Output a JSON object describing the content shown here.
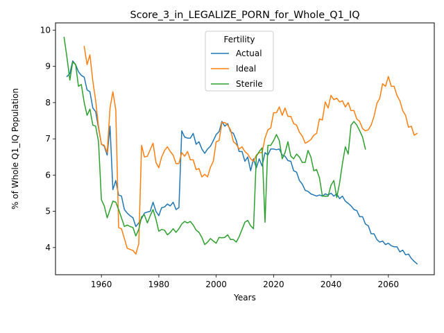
{
  "chart_data": {
    "type": "line",
    "title": "Score_3_in_LEGALIZE_PORN_for_Whole_Q1_IQ",
    "xlabel": "Years",
    "ylabel": "% of Whole Q1_IQ Population",
    "xlim": [
      1944,
      2076
    ],
    "ylim": [
      3.25,
      10.2
    ],
    "xticks": [
      1960,
      1980,
      2000,
      2020,
      2040,
      2060
    ],
    "yticks": [
      4,
      5,
      6,
      7,
      8,
      9,
      10
    ],
    "grid": false,
    "legend": {
      "title": "Fertility",
      "position": "upper center"
    },
    "series": [
      {
        "name": "Actual",
        "color": "#1f77b4",
        "x": [
          1948,
          1949,
          1950,
          1951,
          1952,
          1953,
          1954,
          1955,
          1956,
          1957,
          1958,
          1959,
          1960,
          1961,
          1962,
          1963,
          1964,
          1965,
          1966,
          1967,
          1968,
          1969,
          1970,
          1971,
          1972,
          1973,
          1974,
          1975,
          1976,
          1977,
          1978,
          1979,
          1980,
          1981,
          1982,
          1983,
          1984,
          1985,
          1986,
          1987,
          1988,
          1989,
          1990,
          1991,
          1992,
          1993,
          1994,
          1995,
          1996,
          1997,
          1998,
          1999,
          2000,
          2001,
          2002,
          2003,
          2004,
          2005,
          2006,
          2007,
          2008,
          2009,
          2010,
          2011,
          2012,
          2013,
          2014,
          2015,
          2016,
          2017,
          2018,
          2019,
          2020,
          2021,
          2022,
          2023,
          2024,
          2025,
          2026,
          2027,
          2028,
          2029,
          2030,
          2031,
          2032,
          2033,
          2034,
          2035,
          2036,
          2037,
          2038,
          2039,
          2040,
          2041,
          2042,
          2043,
          2044,
          2045,
          2046,
          2047,
          2048,
          2049,
          2050,
          2051,
          2052,
          2053,
          2054,
          2055,
          2056,
          2057,
          2058,
          2059,
          2060,
          2061,
          2062,
          2063,
          2064,
          2065,
          2066,
          2067,
          2068,
          2069,
          2070
        ],
        "y": [
          8.72,
          8.8,
          9.15,
          9.05,
          8.85,
          8.75,
          8.7,
          8.35,
          8.3,
          7.85,
          7.75,
          7.3,
          6.85,
          6.8,
          6.55,
          7.35,
          5.6,
          5.85,
          5.45,
          5.42,
          5.05,
          4.95,
          4.88,
          4.82,
          4.58,
          4.68,
          4.8,
          4.95,
          4.98,
          5.0,
          5.25,
          5.0,
          4.88,
          5.1,
          5.12,
          5.2,
          5.15,
          5.25,
          5.05,
          5.1,
          7.22,
          7.05,
          7.02,
          7.02,
          7.15,
          6.85,
          6.92,
          6.72,
          6.6,
          6.72,
          6.8,
          6.95,
          7.12,
          7.2,
          7.48,
          7.35,
          7.42,
          7.2,
          7.15,
          6.95,
          6.65,
          6.65,
          6.38,
          6.5,
          6.12,
          6.45,
          6.2,
          6.45,
          6.25,
          6.62,
          6.55,
          6.72,
          6.72,
          6.7,
          6.72,
          6.55,
          6.52,
          6.4,
          6.38,
          6.12,
          6.08,
          5.85,
          5.75,
          5.58,
          5.55,
          5.48,
          5.45,
          5.42,
          5.45,
          5.42,
          5.48,
          5.45,
          5.5,
          5.42,
          5.48,
          5.35,
          5.42,
          5.28,
          5.22,
          5.15,
          5.05,
          5.02,
          4.85,
          4.85,
          4.65,
          4.6,
          4.38,
          4.38,
          4.22,
          4.15,
          4.18,
          4.08,
          4.12,
          4.05,
          4.02,
          4.02,
          3.88,
          3.93,
          3.8,
          3.82,
          3.7,
          3.62,
          3.55
        ]
      },
      {
        "name": "Ideal",
        "color": "#ff7f0e",
        "x": [
          1954,
          1955,
          1956,
          1957,
          1958,
          1959,
          1960,
          1961,
          1962,
          1963,
          1964,
          1965,
          1966,
          1967,
          1968,
          1969,
          1970,
          1971,
          1972,
          1973,
          1974,
          1975,
          1976,
          1977,
          1978,
          1979,
          1980,
          1981,
          1982,
          1983,
          1984,
          1985,
          1986,
          1987,
          1988,
          1989,
          1990,
          1991,
          1992,
          1993,
          1994,
          1995,
          1996,
          1997,
          1998,
          1999,
          2000,
          2001,
          2002,
          2003,
          2004,
          2005,
          2006,
          2007,
          2008,
          2009,
          2010,
          2011,
          2012,
          2013,
          2014,
          2015,
          2016,
          2017,
          2018,
          2019,
          2020,
          2021,
          2022,
          2023,
          2024,
          2025,
          2026,
          2027,
          2028,
          2029,
          2030,
          2031,
          2032,
          2033,
          2034,
          2035,
          2036,
          2037,
          2038,
          2039,
          2040,
          2041,
          2042,
          2043,
          2044,
          2045,
          2046,
          2047,
          2048,
          2049,
          2050,
          2051,
          2052,
          2053,
          2054,
          2055,
          2056,
          2057,
          2058,
          2059,
          2060,
          2061,
          2062,
          2063,
          2064,
          2065,
          2066,
          2067,
          2068,
          2069,
          2070
        ],
        "y": [
          9.55,
          9.05,
          9.32,
          8.6,
          8.05,
          7.35,
          6.85,
          6.82,
          6.62,
          7.85,
          8.3,
          7.8,
          4.55,
          4.52,
          4.25,
          3.98,
          3.95,
          3.92,
          3.82,
          4.1,
          6.82,
          6.5,
          6.52,
          6.7,
          6.88,
          6.35,
          6.2,
          6.5,
          6.68,
          6.78,
          6.65,
          6.55,
          6.32,
          6.32,
          6.62,
          6.52,
          6.65,
          6.42,
          6.42,
          6.15,
          6.18,
          5.95,
          6.02,
          5.95,
          6.22,
          6.38,
          6.92,
          6.95,
          7.45,
          7.45,
          7.38,
          7.25,
          6.92,
          6.85,
          6.72,
          6.78,
          6.65,
          6.58,
          6.45,
          6.38,
          6.55,
          6.62,
          6.62,
          7.02,
          7.25,
          7.3,
          7.72,
          7.72,
          7.88,
          7.65,
          7.85,
          7.62,
          7.62,
          7.42,
          7.38,
          7.18,
          7.08,
          6.88,
          6.92,
          6.98,
          7.1,
          7.15,
          7.55,
          7.52,
          8.02,
          7.85,
          8.2,
          8.08,
          8.12,
          8.02,
          8.05,
          7.88,
          8.0,
          7.78,
          7.78,
          7.55,
          7.48,
          7.28,
          7.22,
          7.25,
          7.38,
          7.62,
          7.98,
          8.12,
          8.52,
          8.45,
          8.72,
          8.45,
          8.45,
          8.2,
          8.05,
          7.78,
          7.65,
          7.32,
          7.35,
          7.1,
          7.15
        ]
      },
      {
        "name": "Sterile",
        "color": "#2ca02c",
        "x": [
          1947,
          1948,
          1949,
          1950,
          1951,
          1952,
          1953,
          1954,
          1955,
          1956,
          1957,
          1958,
          1959,
          1960,
          1961,
          1962,
          1963,
          1964,
          1965,
          1966,
          1967,
          1968,
          1969,
          1970,
          1971,
          1972,
          1973,
          1974,
          1975,
          1976,
          1977,
          1978,
          1979,
          1980,
          1981,
          1982,
          1983,
          1984,
          1985,
          1986,
          1987,
          1988,
          1989,
          1990,
          1991,
          1992,
          1993,
          1994,
          1995,
          1996,
          1997,
          1998,
          1999,
          2000,
          2001,
          2002,
          2003,
          2004,
          2005,
          2006,
          2007,
          2008,
          2009,
          2010,
          2011,
          2012,
          2013,
          2014,
          2015,
          2016,
          2017,
          2018,
          2019,
          2020,
          2021,
          2022,
          2023,
          2024,
          2025,
          2026,
          2027,
          2028,
          2029,
          2030,
          2031,
          2032,
          2033,
          2034,
          2035,
          2036,
          2037,
          2038,
          2039,
          2040,
          2041,
          2042,
          2043,
          2044,
          2045,
          2046,
          2047,
          2048,
          2049,
          2050,
          2051,
          2052
        ],
        "y": [
          9.8,
          9.25,
          8.62,
          9.12,
          9.05,
          8.45,
          8.5,
          8.0,
          7.65,
          7.82,
          7.38,
          7.35,
          6.92,
          5.32,
          5.15,
          4.82,
          5.05,
          5.28,
          5.25,
          5.05,
          4.82,
          4.58,
          4.62,
          4.58,
          4.55,
          4.32,
          4.5,
          4.85,
          4.9,
          4.68,
          4.88,
          5.05,
          4.78,
          4.45,
          4.5,
          4.48,
          4.35,
          4.42,
          4.52,
          4.42,
          4.52,
          4.65,
          4.72,
          4.68,
          4.72,
          4.62,
          4.48,
          4.42,
          4.28,
          4.08,
          4.15,
          4.25,
          4.18,
          4.12,
          4.28,
          4.27,
          4.28,
          4.35,
          4.22,
          4.22,
          4.15,
          4.3,
          4.5,
          4.7,
          4.75,
          4.6,
          4.52,
          6.52,
          6.65,
          6.75,
          4.7,
          6.82,
          6.82,
          6.95,
          7.12,
          6.95,
          6.45,
          6.62,
          6.92,
          6.52,
          6.45,
          6.58,
          6.5,
          6.35,
          6.35,
          6.68,
          6.5,
          6.12,
          6.15,
          5.92,
          5.42,
          5.42,
          5.42,
          5.72,
          5.85,
          5.38,
          5.78,
          6.32,
          6.78,
          6.58,
          7.38,
          7.48,
          7.38,
          7.22,
          7.05,
          6.72
        ]
      }
    ]
  }
}
